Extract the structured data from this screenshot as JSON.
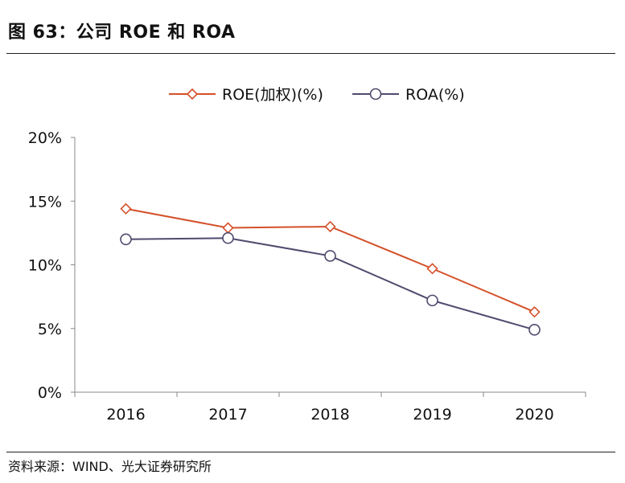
{
  "figure": {
    "title": "图 63：公司 ROE 和 ROA",
    "source": "资料来源：WIND、光大证券研究所"
  },
  "colors": {
    "roe": "#d4502a",
    "roa": "#4f4a6e",
    "axis": "#888888"
  },
  "chart_data": {
    "type": "line",
    "x": [
      "2016",
      "2017",
      "2018",
      "2019",
      "2020"
    ],
    "series": [
      {
        "name": "ROE(加权)(%)",
        "values": [
          14.4,
          12.9,
          13.0,
          9.7,
          6.3
        ],
        "marker": "diamond"
      },
      {
        "name": "ROA(%)",
        "values": [
          12.0,
          12.1,
          10.7,
          7.2,
          4.9
        ],
        "marker": "circle"
      }
    ],
    "yticks": [
      "0%",
      "5%",
      "10%",
      "15%",
      "20%"
    ],
    "ylim": [
      0,
      20
    ],
    "grid": false,
    "legend": "top-center"
  }
}
